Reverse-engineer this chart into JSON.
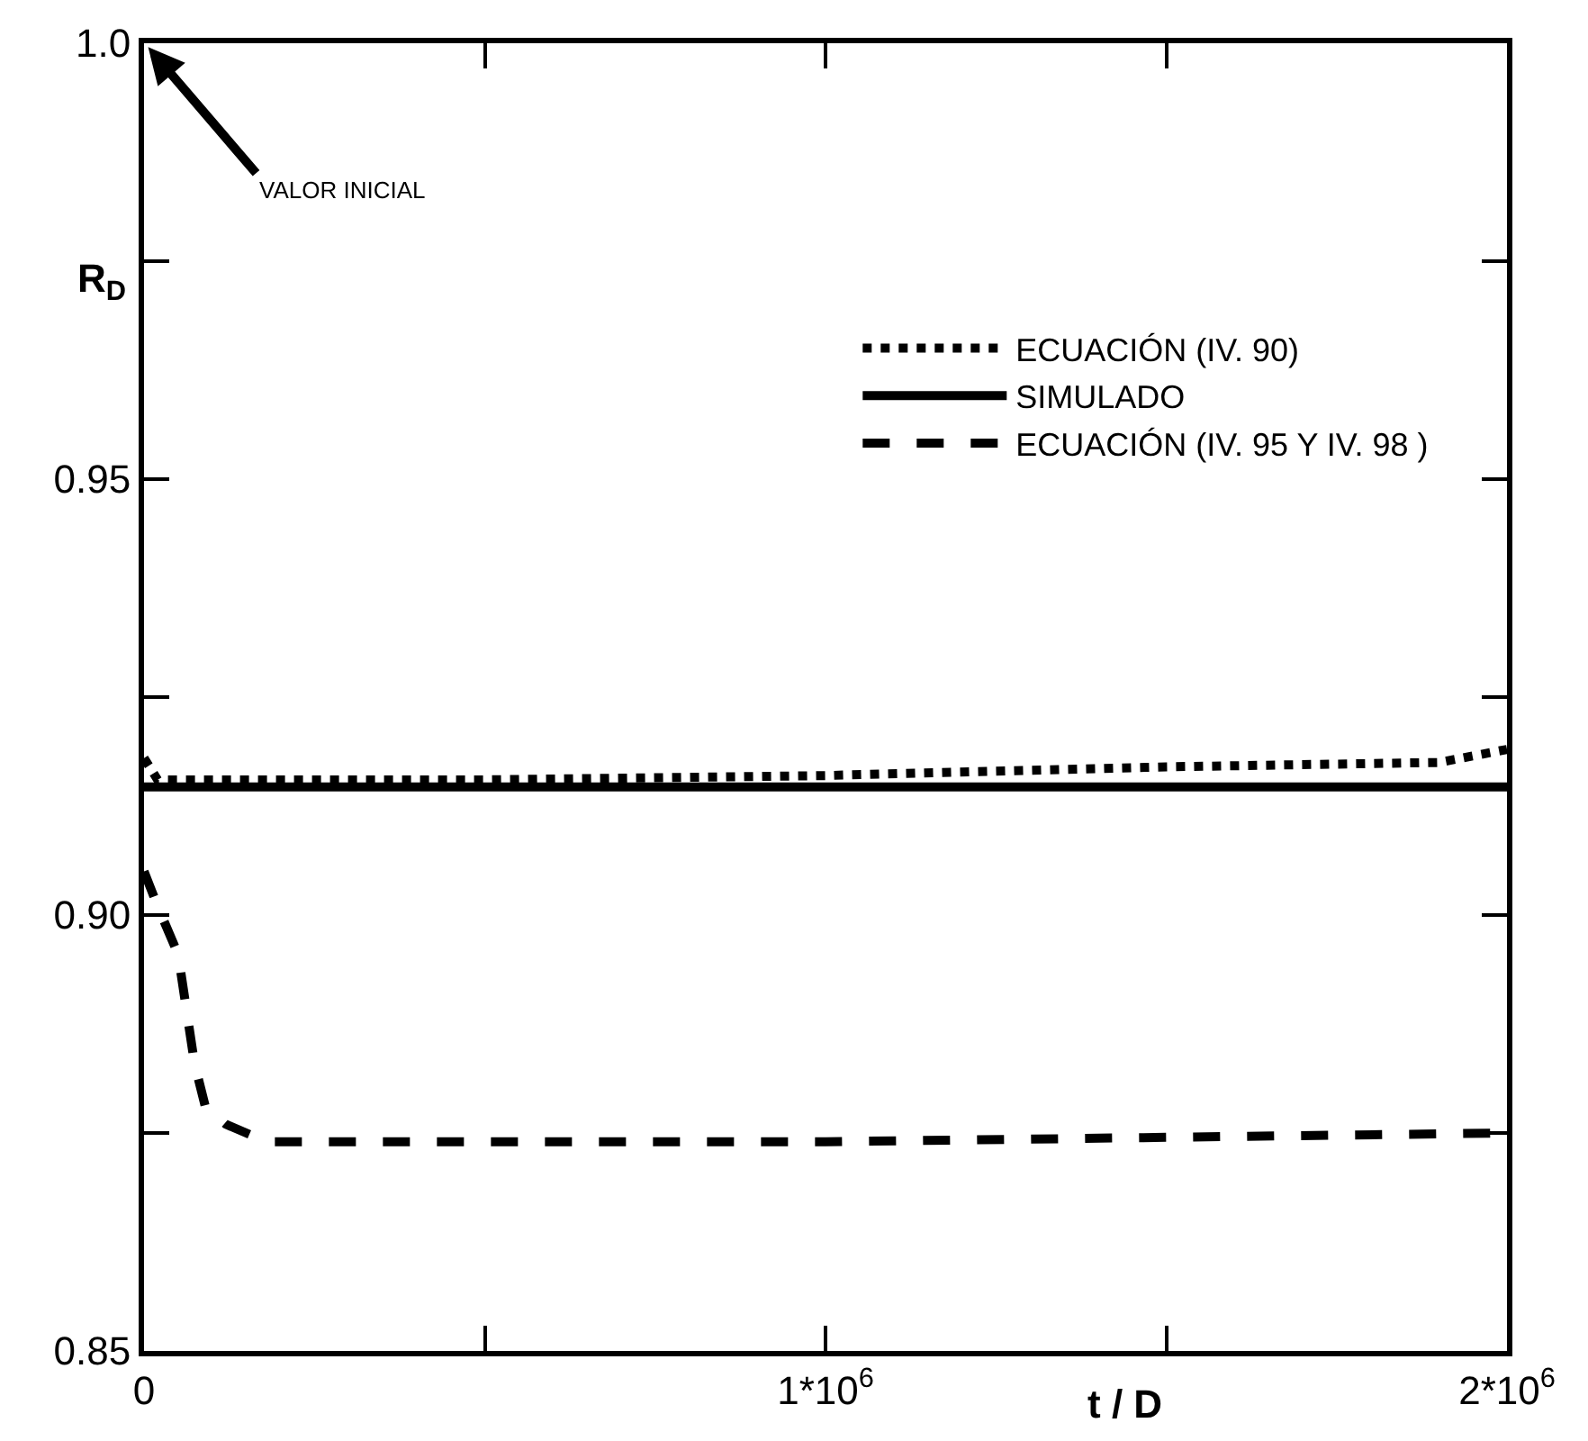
{
  "chart_data": {
    "type": "line",
    "xlabel": "t / D",
    "ylabel": "R$_{D}$",
    "xlim": [
      0,
      2000000
    ],
    "xticks": [
      {
        "value": 0,
        "label": "0"
      },
      {
        "value": 500000,
        "label": null
      },
      {
        "value": 1000000,
        "label": "1*10$^{6}$"
      },
      {
        "value": 1500000,
        "label": null
      },
      {
        "value": 2000000,
        "label": "2*10$^{6}$"
      }
    ],
    "ylim": [
      0.85,
      1.0
    ],
    "yticks": [
      {
        "value": 0.85,
        "label": "0.85"
      },
      {
        "value": 0.875,
        "label": null
      },
      {
        "value": 0.9,
        "label": "0.90"
      },
      {
        "value": 0.925,
        "label": null
      },
      {
        "value": 0.95,
        "label": "0.95"
      },
      {
        "value": 0.975,
        "label": null
      },
      {
        "value": 1.0,
        "label": "1.0"
      }
    ],
    "legend": "right",
    "annotations": [
      "VALOR INICIAL"
    ],
    "series": [
      {
        "name": "ECUACIÓN (IV. 90)",
        "color": "#000000",
        "line_style": "dotted",
        "x": [
          0,
          20000,
          500000,
          1000000,
          1500000,
          1900000,
          2000000
        ],
        "values": [
          0.918,
          0.9155,
          0.9155,
          0.916,
          0.917,
          0.9175,
          0.919
        ]
      },
      {
        "name": "SIMULADO",
        "color": "#000000",
        "line_style": "solid",
        "x": [
          0,
          2000000
        ],
        "values": [
          0.9147,
          0.9147
        ]
      },
      {
        "name": "ECUACIÓN (IV. 95 Y IV. 98 )",
        "color": "#000000",
        "line_style": "dashed",
        "x": [
          0,
          20000,
          50000,
          74000,
          90000,
          120000,
          180000,
          500000,
          1000000,
          1500000,
          2000000
        ],
        "values": [
          0.905,
          0.901,
          0.8955,
          0.883,
          0.878,
          0.876,
          0.874,
          0.874,
          0.874,
          0.8745,
          0.875
        ]
      }
    ]
  }
}
